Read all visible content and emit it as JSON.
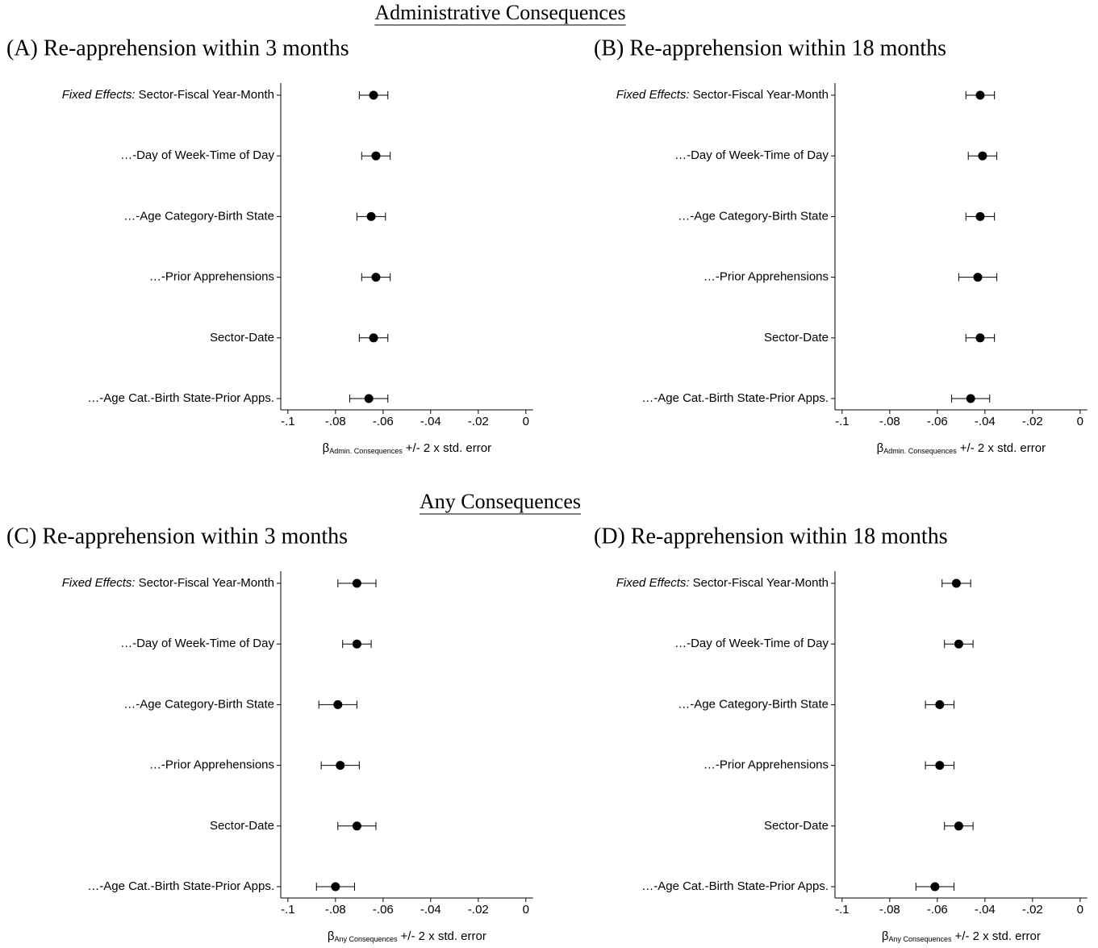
{
  "headings": [
    "Administrative Consequences",
    "Any Consequences"
  ],
  "chart_data": [
    {
      "type": "errorbar",
      "title": "(A) Re-apprehension within 3 months",
      "category_prefix": "Fixed Effects:",
      "categories": [
        "Sector-Fiscal Year-Month",
        "…-Day of Week-Time of Day",
        "…-Age Category-Birth State",
        "…-Prior Apprehensions",
        "Sector-Date",
        "…-Age Cat.-Birth State-Prior Apps."
      ],
      "values": [
        -0.064,
        -0.063,
        -0.065,
        -0.063,
        -0.064,
        -0.066
      ],
      "errors": [
        0.006,
        0.006,
        0.006,
        0.006,
        0.006,
        0.008
      ],
      "color": "#000000",
      "xlim": [
        -0.103,
        0.003
      ],
      "xticks": [
        {
          "value": -0.1,
          "label": "-.1"
        },
        {
          "value": -0.08,
          "label": "-.08"
        },
        {
          "value": -0.06,
          "label": "-.06"
        },
        {
          "value": -0.04,
          "label": "-.04"
        },
        {
          "value": -0.02,
          "label": "-.02"
        },
        0
      ],
      "x_label": {
        "symbol": "β",
        "subscript": "Admin. Consequences",
        "text": "+/- 2 x std. error"
      }
    },
    {
      "type": "errorbar",
      "title": "(B) Re-apprehension within 18 months",
      "category_prefix": "Fixed Effects:",
      "categories": [
        "Sector-Fiscal Year-Month",
        "…-Day of Week-Time of Day",
        "…-Age Category-Birth State",
        "…-Prior Apprehensions",
        "Sector-Date",
        "…-Age Cat.-Birth State-Prior Apps."
      ],
      "values": [
        -0.042,
        -0.041,
        -0.042,
        -0.043,
        -0.042,
        -0.046
      ],
      "errors": [
        0.006,
        0.006,
        0.006,
        0.008,
        0.006,
        0.008
      ],
      "color": "#000000",
      "xlim": [
        -0.103,
        0.003
      ],
      "xticks": [
        {
          "value": -0.1,
          "label": "-.1"
        },
        {
          "value": -0.08,
          "label": "-.08"
        },
        {
          "value": -0.06,
          "label": "-.06"
        },
        {
          "value": -0.04,
          "label": "-.04"
        },
        {
          "value": -0.02,
          "label": "-.02"
        },
        0
      ],
      "x_label": {
        "symbol": "β",
        "subscript": "Admin. Consequences",
        "text": "+/- 2 x std. error"
      }
    },
    {
      "type": "errorbar",
      "title": "(C) Re-apprehension within 3 months",
      "category_prefix": "Fixed Effects:",
      "categories": [
        "Sector-Fiscal Year-Month",
        "…-Day of Week-Time of Day",
        "…-Age Category-Birth State",
        "…-Prior Apprehensions",
        "Sector-Date",
        "…-Age Cat.-Birth State-Prior Apps."
      ],
      "values": [
        -0.071,
        -0.071,
        -0.079,
        -0.078,
        -0.071,
        -0.08
      ],
      "errors": [
        0.008,
        0.006,
        0.008,
        0.008,
        0.008,
        0.008
      ],
      "color": "#000000",
      "xlim": [
        -0.103,
        0.003
      ],
      "xticks": [
        {
          "value": -0.1,
          "label": "-.1"
        },
        {
          "value": -0.08,
          "label": "-.08"
        },
        {
          "value": -0.06,
          "label": "-.06"
        },
        {
          "value": -0.04,
          "label": "-.04"
        },
        {
          "value": -0.02,
          "label": "-.02"
        },
        0
      ],
      "x_label": {
        "symbol": "β",
        "subscript": "Any Consequences",
        "text": "+/- 2 x std. error"
      }
    },
    {
      "type": "errorbar",
      "title": "(D) Re-apprehension within 18 months",
      "category_prefix": "Fixed Effects:",
      "categories": [
        "Sector-Fiscal Year-Month",
        "…-Day of Week-Time of Day",
        "…-Age Category-Birth State",
        "…-Prior Apprehensions",
        "Sector-Date",
        "…-Age Cat.-Birth State-Prior Apps."
      ],
      "values": [
        -0.052,
        -0.051,
        -0.059,
        -0.059,
        -0.051,
        -0.061
      ],
      "errors": [
        0.006,
        0.006,
        0.006,
        0.006,
        0.006,
        0.008
      ],
      "color": "#000000",
      "xlim": [
        -0.103,
        0.003
      ],
      "xticks": [
        {
          "value": -0.1,
          "label": "-.1"
        },
        {
          "value": -0.08,
          "label": "-.08"
        },
        {
          "value": -0.06,
          "label": "-.06"
        },
        {
          "value": -0.04,
          "label": "-.04"
        },
        {
          "value": -0.02,
          "label": "-.02"
        },
        0
      ],
      "x_label": {
        "symbol": "β",
        "subscript": "Any Consequences",
        "text": "+/- 2 x std. error"
      }
    }
  ]
}
